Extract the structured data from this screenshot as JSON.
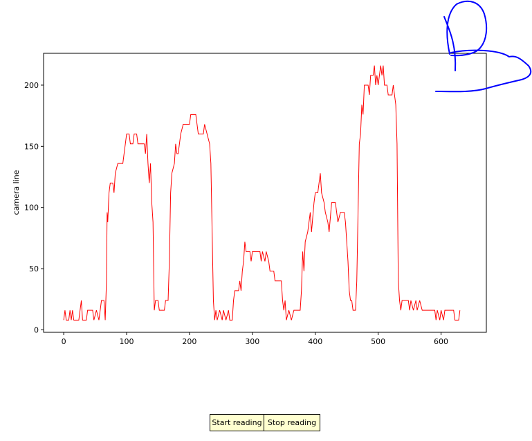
{
  "chart_data": {
    "type": "line",
    "y_label": "camera line",
    "color": "#ff0000",
    "xlim": [
      -32,
      672
    ],
    "ylim": [
      -2,
      226
    ],
    "xticks": [
      0,
      100,
      200,
      300,
      400,
      500,
      600
    ],
    "yticks": [
      0,
      50,
      100,
      150,
      200
    ],
    "x": [
      0,
      2,
      4,
      8,
      10,
      12,
      14,
      16,
      18,
      24,
      28,
      30,
      36,
      38,
      46,
      48,
      52,
      56,
      60,
      64,
      66,
      68,
      69,
      70,
      72,
      74,
      78,
      80,
      82,
      86,
      94,
      96,
      98,
      100,
      104,
      106,
      110,
      112,
      116,
      118,
      128,
      130,
      132,
      134,
      136,
      138,
      140,
      142,
      144,
      146,
      150,
      152,
      160,
      162,
      166,
      168,
      170,
      172,
      176,
      178,
      180,
      182,
      186,
      190,
      200,
      202,
      210,
      212,
      214,
      222,
      224,
      228,
      232,
      234,
      236,
      238,
      240,
      242,
      244,
      248,
      252,
      254,
      258,
      262,
      264,
      268,
      270,
      272,
      278,
      280,
      282,
      284,
      286,
      288,
      290,
      296,
      298,
      300,
      312,
      314,
      316,
      320,
      322,
      326,
      328,
      334,
      336,
      346,
      348,
      350,
      352,
      354,
      358,
      362,
      366,
      376,
      378,
      380,
      382,
      384,
      388,
      392,
      394,
      398,
      400,
      404,
      406,
      408,
      410,
      414,
      416,
      420,
      422,
      426,
      432,
      434,
      436,
      440,
      446,
      448,
      450,
      452,
      454,
      456,
      458,
      460,
      464,
      466,
      468,
      470,
      472,
      474,
      476,
      478,
      484,
      486,
      488,
      492,
      494,
      496,
      498,
      500,
      504,
      506,
      508,
      510,
      514,
      516,
      522,
      524,
      528,
      530,
      532,
      534,
      536,
      538,
      548,
      550,
      552,
      556,
      560,
      562,
      566,
      570,
      590,
      592,
      594,
      598,
      600,
      604,
      606,
      620,
      622,
      628,
      630
    ],
    "values": [
      8,
      16,
      8,
      8,
      16,
      8,
      16,
      8,
      8,
      8,
      24,
      8,
      8,
      16,
      16,
      8,
      16,
      8,
      24,
      24,
      8,
      40,
      96,
      88,
      112,
      120,
      120,
      112,
      128,
      136,
      136,
      144,
      152,
      160,
      160,
      152,
      152,
      160,
      160,
      152,
      152,
      144,
      160,
      136,
      120,
      136,
      104,
      88,
      16,
      24,
      24,
      16,
      16,
      24,
      24,
      56,
      112,
      128,
      136,
      152,
      144,
      144,
      160,
      168,
      168,
      176,
      176,
      168,
      160,
      160,
      168,
      160,
      152,
      136,
      80,
      24,
      8,
      16,
      8,
      16,
      8,
      16,
      8,
      16,
      8,
      8,
      24,
      32,
      32,
      40,
      32,
      48,
      56,
      72,
      64,
      64,
      56,
      64,
      64,
      56,
      64,
      56,
      64,
      56,
      48,
      48,
      40,
      40,
      24,
      16,
      24,
      8,
      16,
      8,
      16,
      16,
      32,
      64,
      48,
      72,
      80,
      96,
      80,
      104,
      112,
      112,
      120,
      128,
      112,
      104,
      96,
      88,
      80,
      104,
      104,
      96,
      88,
      96,
      96,
      88,
      72,
      56,
      32,
      24,
      24,
      16,
      16,
      40,
      96,
      152,
      160,
      184,
      176,
      200,
      200,
      192,
      208,
      208,
      216,
      200,
      208,
      200,
      216,
      208,
      216,
      200,
      200,
      192,
      192,
      200,
      184,
      152,
      40,
      24,
      16,
      24,
      24,
      16,
      24,
      16,
      24,
      16,
      24,
      16,
      16,
      8,
      16,
      8,
      16,
      8,
      16,
      16,
      8,
      8,
      16
    ]
  },
  "buttons": [
    "Start reading",
    "Stop reading"
  ]
}
